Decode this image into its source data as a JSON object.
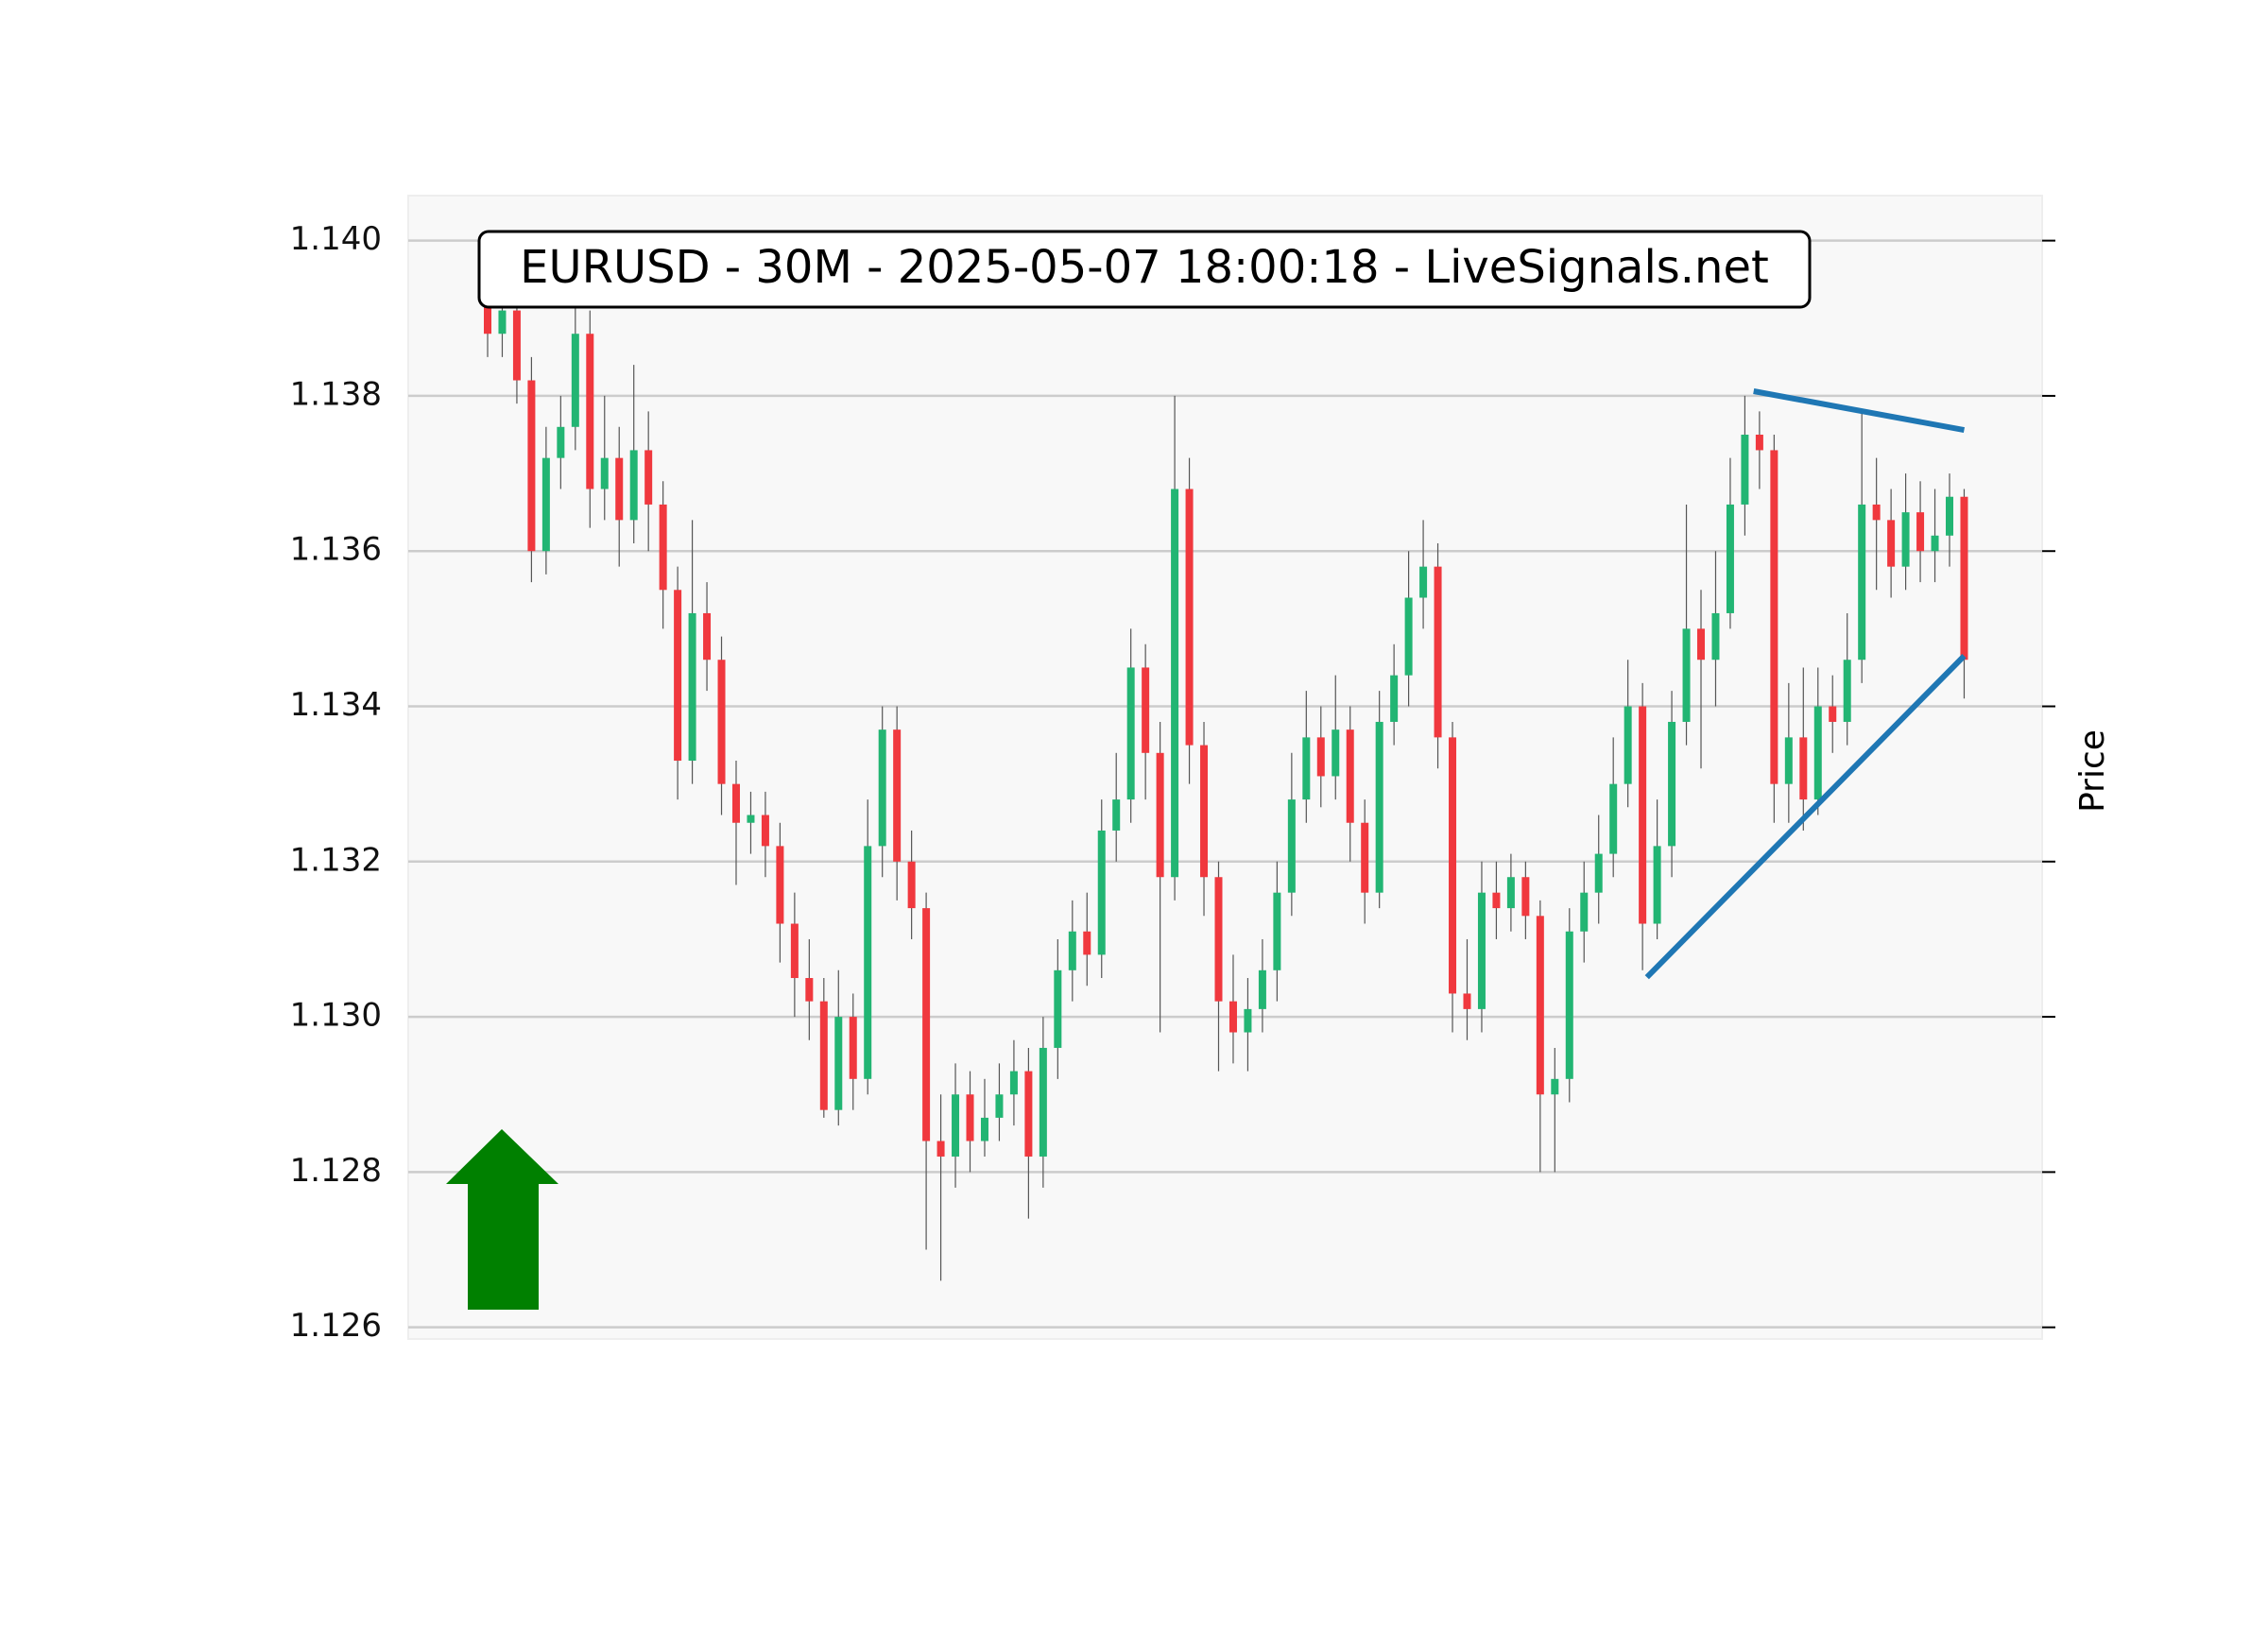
{
  "chart_data": {
    "type": "candlestick",
    "title": "EURUSD - 30M - 2025-05-07 18:00:18 - LiveSignals.net",
    "y_label": "Price",
    "ylim": [
      1.12585,
      1.14058
    ],
    "yticks": [
      1.126,
      1.128,
      {
        "value": 1.13,
        "label": "1.130"
      },
      1.132,
      1.134,
      1.136,
      1.138,
      {
        "value": 1.14,
        "label": "1.140"
      }
    ],
    "grid": true,
    "up_color": "#22b573",
    "down_color": "#f0383e",
    "open": [
      1.1394,
      1.1388,
      1.1391,
      1.1382,
      1.136,
      1.1372,
      1.1376,
      1.1388,
      1.1368,
      1.1372,
      1.1364,
      1.1373,
      1.1366,
      1.1355,
      1.1333,
      1.1352,
      1.1346,
      1.133,
      1.1325,
      1.1326,
      1.1322,
      1.1312,
      1.1305,
      1.1302,
      1.1288,
      1.13,
      1.1292,
      1.1322,
      1.1337,
      1.132,
      1.1314,
      1.1284,
      1.1282,
      1.129,
      1.1284,
      1.1287,
      1.129,
      1.1293,
      1.1282,
      1.1296,
      1.1306,
      1.1311,
      1.1308,
      1.1324,
      1.1328,
      1.1345,
      1.1334,
      1.1318,
      1.1368,
      1.1335,
      1.1318,
      1.1302,
      1.1298,
      1.1301,
      1.1306,
      1.1316,
      1.1328,
      1.1336,
      1.1331,
      1.1337,
      1.1325,
      1.1316,
      1.1338,
      1.1344,
      1.1354,
      1.1358,
      1.1336,
      1.1303,
      1.1301,
      1.1316,
      1.1314,
      1.1318,
      1.1313,
      1.129,
      1.1292,
      1.1311,
      1.1316,
      1.1321,
      1.133,
      1.134,
      1.1312,
      1.1322,
      1.1338,
      1.135,
      1.1346,
      1.1352,
      1.1366,
      1.1375,
      1.1373,
      1.133,
      1.1336,
      1.1328,
      1.134,
      1.1338,
      1.1346,
      1.1366,
      1.1364,
      1.1358,
      1.1365,
      1.136,
      1.1362,
      1.1367
    ],
    "high": [
      1.1397,
      1.1394,
      1.1394,
      1.1385,
      1.1376,
      1.138,
      1.1392,
      1.1391,
      1.138,
      1.1376,
      1.1384,
      1.1378,
      1.1369,
      1.1358,
      1.1364,
      1.1356,
      1.1349,
      1.1333,
      1.1329,
      1.1329,
      1.1325,
      1.1316,
      1.131,
      1.1305,
      1.1306,
      1.1303,
      1.1328,
      1.134,
      1.134,
      1.1324,
      1.1316,
      1.129,
      1.1294,
      1.1293,
      1.1292,
      1.1294,
      1.1297,
      1.1296,
      1.13,
      1.131,
      1.1315,
      1.1316,
      1.1328,
      1.1334,
      1.135,
      1.1348,
      1.1338,
      1.138,
      1.1372,
      1.1338,
      1.132,
      1.1308,
      1.1305,
      1.131,
      1.132,
      1.1334,
      1.1342,
      1.134,
      1.1344,
      1.134,
      1.1328,
      1.1342,
      1.1348,
      1.136,
      1.1364,
      1.1361,
      1.1338,
      1.131,
      1.132,
      1.132,
      1.1321,
      1.132,
      1.1315,
      1.1296,
      1.1314,
      1.132,
      1.1326,
      1.1336,
      1.1346,
      1.1343,
      1.1328,
      1.1342,
      1.1366,
      1.1355,
      1.136,
      1.1372,
      1.138,
      1.1378,
      1.1375,
      1.1343,
      1.1345,
      1.1345,
      1.1344,
      1.1352,
      1.1378,
      1.1372,
      1.1368,
      1.137,
      1.1369,
      1.1368,
      1.137,
      1.1368
    ],
    "low": [
      1.1385,
      1.1385,
      1.1379,
      1.1356,
      1.1357,
      1.1368,
      1.1373,
      1.1363,
      1.1364,
      1.1358,
      1.1361,
      1.136,
      1.135,
      1.1328,
      1.133,
      1.1342,
      1.1326,
      1.1317,
      1.1321,
      1.1318,
      1.1307,
      1.13,
      1.1297,
      1.1287,
      1.1286,
      1.1288,
      1.129,
      1.1318,
      1.1315,
      1.131,
      1.127,
      1.1266,
      1.1278,
      1.128,
      1.1282,
      1.1284,
      1.1286,
      1.1274,
      1.1278,
      1.1292,
      1.1302,
      1.1304,
      1.1305,
      1.132,
      1.1325,
      1.1328,
      1.1298,
      1.1315,
      1.133,
      1.1313,
      1.1293,
      1.1294,
      1.1293,
      1.1298,
      1.1302,
      1.1313,
      1.1325,
      1.1327,
      1.1328,
      1.132,
      1.1312,
      1.1314,
      1.1335,
      1.134,
      1.135,
      1.1332,
      1.1298,
      1.1297,
      1.1298,
      1.131,
      1.1311,
      1.131,
      1.128,
      1.128,
      1.1289,
      1.1307,
      1.1312,
      1.1318,
      1.1327,
      1.1306,
      1.131,
      1.1318,
      1.1335,
      1.1332,
      1.134,
      1.135,
      1.1362,
      1.1368,
      1.1325,
      1.1325,
      1.1324,
      1.1326,
      1.1334,
      1.1335,
      1.1343,
      1.1355,
      1.1354,
      1.1355,
      1.1356,
      1.1356,
      1.1358,
      1.1341
    ],
    "close": [
      1.1388,
      1.1391,
      1.1382,
      1.136,
      1.1372,
      1.1376,
      1.1388,
      1.1368,
      1.1372,
      1.1364,
      1.1373,
      1.1366,
      1.1355,
      1.1333,
      1.1352,
      1.1346,
      1.133,
      1.1325,
      1.1326,
      1.1322,
      1.1312,
      1.1305,
      1.1302,
      1.1288,
      1.13,
      1.1292,
      1.1322,
      1.1337,
      1.132,
      1.1314,
      1.1284,
      1.1282,
      1.129,
      1.1284,
      1.1287,
      1.129,
      1.1293,
      1.1282,
      1.1296,
      1.1306,
      1.1311,
      1.1308,
      1.1324,
      1.1328,
      1.1345,
      1.1334,
      1.1318,
      1.1368,
      1.1335,
      1.1318,
      1.1302,
      1.1298,
      1.1301,
      1.1306,
      1.1316,
      1.1328,
      1.1336,
      1.1331,
      1.1337,
      1.1325,
      1.1316,
      1.1338,
      1.1344,
      1.1354,
      1.1358,
      1.1336,
      1.1303,
      1.1301,
      1.1316,
      1.1314,
      1.1318,
      1.1313,
      1.129,
      1.1292,
      1.1311,
      1.1316,
      1.1321,
      1.133,
      1.134,
      1.1312,
      1.1322,
      1.1338,
      1.135,
      1.1346,
      1.1352,
      1.1366,
      1.1375,
      1.1373,
      1.133,
      1.1336,
      1.1328,
      1.134,
      1.1338,
      1.1346,
      1.1366,
      1.1364,
      1.1358,
      1.1365,
      1.136,
      1.1362,
      1.1367,
      1.1346
    ],
    "trendlines": [
      {
        "color": "#1f77b4",
        "x": [
          79.3,
          101
        ],
        "y": [
          1.13051,
          1.13465
        ]
      },
      {
        "color": "#1f77b4",
        "x": [
          86.6,
          101
        ],
        "y": [
          1.13806,
          1.13756
        ]
      }
    ]
  }
}
